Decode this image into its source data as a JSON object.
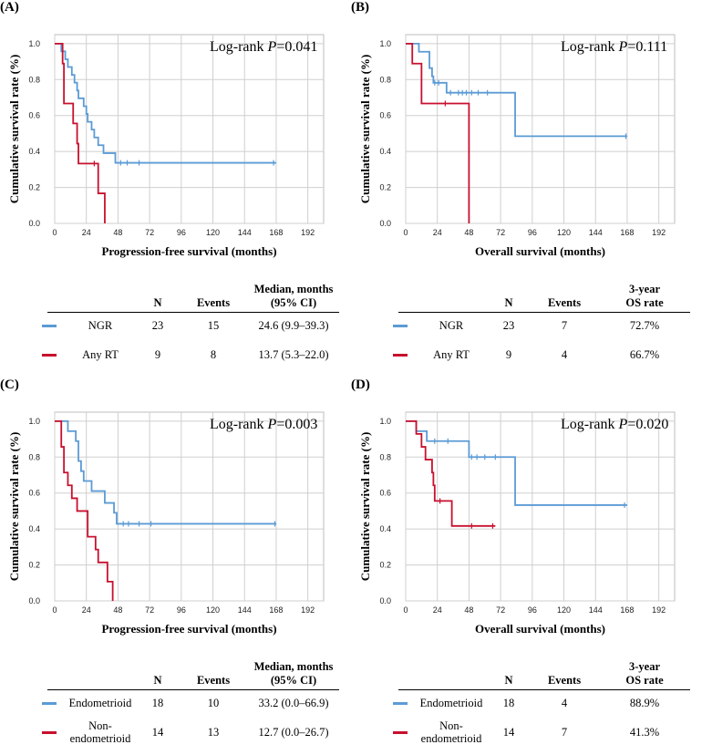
{
  "colors": {
    "group1": "#5b9bd5",
    "group2": "#c8102e",
    "grid": "#cfcfcf"
  },
  "panels": [
    {
      "label": "(A)",
      "log_rank_prefix": "Log-rank ",
      "log_rank_p_symbol": "P",
      "log_rank_value": "=0.041",
      "ylabel": "Cumulative survival rate (%)",
      "xlabel": "Progression-free survival (months)",
      "table": {
        "headers": [
          "N",
          "Events",
          "Median, months\n(95% CI)"
        ],
        "rows": [
          {
            "name": "NGR",
            "n": "23",
            "events": "15",
            "stat": "24.6 (9.9–39.3)"
          },
          {
            "name": "Any RT",
            "n": "9",
            "events": "8",
            "stat": "13.7 (5.3–22.0)"
          }
        ]
      }
    },
    {
      "label": "(B)",
      "log_rank_prefix": "Log-rank ",
      "log_rank_p_symbol": "P",
      "log_rank_value": "=0.111",
      "ylabel": "Cumulative survival rate (%)",
      "xlabel": "Overall survival  (months)",
      "table": {
        "headers": [
          "N",
          "Events",
          "3-year\nOS rate"
        ],
        "rows": [
          {
            "name": "NGR",
            "n": "23",
            "events": "7",
            "stat": "72.7%"
          },
          {
            "name": "Any RT",
            "n": "9",
            "events": "4",
            "stat": "66.7%"
          }
        ]
      }
    },
    {
      "label": "(C)",
      "log_rank_prefix": "Log-rank ",
      "log_rank_p_symbol": "P",
      "log_rank_value": "=0.003",
      "ylabel": "Cumulative survival rate (%)",
      "xlabel": "Progression-free survival (months)",
      "table": {
        "headers": [
          "N",
          "Events",
          "Median, months\n(95% CI)"
        ],
        "rows": [
          {
            "name": "Endometrioid",
            "n": "18",
            "events": "10",
            "stat": "33.2 (0.0–66.9)"
          },
          {
            "name": "Non-\nendometrioid",
            "n": "14",
            "events": "13",
            "stat": "12.7 (0.0–26.7)"
          }
        ]
      }
    },
    {
      "label": "(D)",
      "log_rank_prefix": "Log-rank ",
      "log_rank_p_symbol": "P",
      "log_rank_value": "=0.020",
      "ylabel": "Cumulative survival rate (%)",
      "xlabel": "Overall survival (months)",
      "table": {
        "headers": [
          "N",
          "Events",
          "3-year\nOS rate"
        ],
        "rows": [
          {
            "name": "Endometrioid",
            "n": "18",
            "events": "4",
            "stat": "88.9%"
          },
          {
            "name": "Non-\nendometrioid",
            "n": "14",
            "events": "7",
            "stat": "41.3%"
          }
        ]
      }
    }
  ],
  "chart_data": [
    {
      "type": "line",
      "subtype": "kaplan-meier",
      "title": "(A)",
      "xlabel": "Progression-free survival (months)",
      "ylabel": "Cumulative survival rate (%)",
      "xlim": [
        0,
        204
      ],
      "ylim": [
        0,
        1.05
      ],
      "xticks": [
        0,
        24,
        48,
        72,
        96,
        120,
        144,
        168,
        192
      ],
      "yticks": [
        0.0,
        0.2,
        0.4,
        0.6,
        0.8,
        1.0
      ],
      "series": [
        {
          "name": "NGR",
          "color": "#5b9bd5",
          "steps": [
            [
              0,
              1.0
            ],
            [
              5,
              0.957
            ],
            [
              8,
              0.913
            ],
            [
              10,
              0.87
            ],
            [
              13,
              0.826
            ],
            [
              15,
              0.783
            ],
            [
              17,
              0.739
            ],
            [
              18,
              0.696
            ],
            [
              22,
              0.652
            ],
            [
              24,
              0.609
            ],
            [
              25,
              0.565
            ],
            [
              28,
              0.522
            ],
            [
              30,
              0.478
            ],
            [
              33,
              0.435
            ],
            [
              37,
              0.391
            ],
            [
              46,
              0.337
            ],
            [
              168,
              0.337
            ]
          ],
          "censored": [
            [
              50,
              0.337
            ],
            [
              55,
              0.337
            ],
            [
              64,
              0.337
            ],
            [
              166,
              0.337
            ]
          ]
        },
        {
          "name": "Any RT",
          "color": "#c8102e",
          "steps": [
            [
              0,
              1.0
            ],
            [
              6,
              0.889
            ],
            [
              7,
              0.667
            ],
            [
              14,
              0.556
            ],
            [
              17,
              0.444
            ],
            [
              18,
              0.333
            ],
            [
              33,
              0.167
            ],
            [
              38,
              0.0
            ]
          ],
          "censored": [
            [
              30,
              0.333
            ]
          ]
        }
      ]
    },
    {
      "type": "line",
      "subtype": "kaplan-meier",
      "title": "(B)",
      "xlabel": "Overall survival  (months)",
      "ylabel": "Cumulative survival rate (%)",
      "xlim": [
        0,
        204
      ],
      "ylim": [
        0,
        1.05
      ],
      "xticks": [
        0,
        24,
        48,
        72,
        96,
        120,
        144,
        168,
        192
      ],
      "yticks": [
        0.0,
        0.2,
        0.4,
        0.6,
        0.8,
        1.0
      ],
      "series": [
        {
          "name": "NGR",
          "color": "#5b9bd5",
          "steps": [
            [
              0,
              1.0
            ],
            [
              10,
              0.955
            ],
            [
              18,
              0.864
            ],
            [
              20,
              0.818
            ],
            [
              21,
              0.782
            ],
            [
              31,
              0.727
            ],
            [
              83,
              0.485
            ],
            [
              168,
              0.485
            ]
          ],
          "censored": [
            [
              22,
              0.782
            ],
            [
              25,
              0.782
            ],
            [
              34,
              0.727
            ],
            [
              40,
              0.727
            ],
            [
              43,
              0.727
            ],
            [
              46,
              0.727
            ],
            [
              50,
              0.727
            ],
            [
              55,
              0.727
            ],
            [
              62,
              0.727
            ],
            [
              167,
              0.485
            ]
          ]
        },
        {
          "name": "Any RT",
          "color": "#c8102e",
          "steps": [
            [
              0,
              1.0
            ],
            [
              5,
              0.889
            ],
            [
              12,
              0.667
            ],
            [
              48,
              0.0
            ]
          ],
          "censored": [
            [
              30,
              0.667
            ]
          ]
        }
      ]
    },
    {
      "type": "line",
      "subtype": "kaplan-meier",
      "title": "(C)",
      "xlabel": "Progression-free survival (months)",
      "ylabel": "Cumulative survival rate (%)",
      "xlim": [
        0,
        204
      ],
      "ylim": [
        0,
        1.05
      ],
      "xticks": [
        0,
        24,
        48,
        72,
        96,
        120,
        144,
        168,
        192
      ],
      "yticks": [
        0.0,
        0.2,
        0.4,
        0.6,
        0.8,
        1.0
      ],
      "series": [
        {
          "name": "Endometrioid",
          "color": "#5b9bd5",
          "steps": [
            [
              0,
              1.0
            ],
            [
              10,
              0.944
            ],
            [
              16,
              0.889
            ],
            [
              18,
              0.778
            ],
            [
              20,
              0.722
            ],
            [
              22,
              0.667
            ],
            [
              28,
              0.611
            ],
            [
              38,
              0.545
            ],
            [
              45,
              0.49
            ],
            [
              47,
              0.429
            ],
            [
              168,
              0.429
            ]
          ],
          "censored": [
            [
              52,
              0.429
            ],
            [
              56,
              0.429
            ],
            [
              64,
              0.429
            ],
            [
              73,
              0.429
            ],
            [
              167,
              0.429
            ]
          ]
        },
        {
          "name": "Non-endometrioid",
          "color": "#c8102e",
          "steps": [
            [
              0,
              1.0
            ],
            [
              5,
              0.857
            ],
            [
              7,
              0.714
            ],
            [
              10,
              0.643
            ],
            [
              13,
              0.571
            ],
            [
              17,
              0.5
            ],
            [
              25,
              0.357
            ],
            [
              31,
              0.286
            ],
            [
              33,
              0.214
            ],
            [
              40,
              0.107
            ],
            [
              44,
              0.0
            ]
          ],
          "censored": []
        }
      ]
    },
    {
      "type": "line",
      "subtype": "kaplan-meier",
      "title": "(D)",
      "xlabel": "Overall survival (months)",
      "ylabel": "Cumulative survival rate (%)",
      "xlim": [
        0,
        204
      ],
      "ylim": [
        0,
        1.05
      ],
      "xticks": [
        0,
        24,
        48,
        72,
        96,
        120,
        144,
        168,
        192
      ],
      "yticks": [
        0.0,
        0.2,
        0.4,
        0.6,
        0.8,
        1.0
      ],
      "series": [
        {
          "name": "Endometrioid",
          "color": "#5b9bd5",
          "steps": [
            [
              0,
              1.0
            ],
            [
              8,
              0.944
            ],
            [
              16,
              0.889
            ],
            [
              48,
              0.8
            ],
            [
              83,
              0.533
            ],
            [
              168,
              0.533
            ]
          ],
          "censored": [
            [
              22,
              0.889
            ],
            [
              32,
              0.889
            ],
            [
              50,
              0.8
            ],
            [
              54,
              0.8
            ],
            [
              60,
              0.8
            ],
            [
              68,
              0.8
            ],
            [
              166,
              0.533
            ]
          ]
        },
        {
          "name": "Non-endometrioid",
          "color": "#c8102e",
          "steps": [
            [
              0,
              1.0
            ],
            [
              8,
              0.929
            ],
            [
              12,
              0.857
            ],
            [
              15,
              0.786
            ],
            [
              20,
              0.714
            ],
            [
              21,
              0.643
            ],
            [
              22,
              0.556
            ],
            [
              32,
              0.556
            ],
            [
              35,
              0.417
            ],
            [
              68,
              0.417
            ]
          ],
          "censored": [
            [
              26,
              0.556
            ],
            [
              50,
              0.417
            ],
            [
              66,
              0.417
            ]
          ]
        }
      ]
    }
  ]
}
